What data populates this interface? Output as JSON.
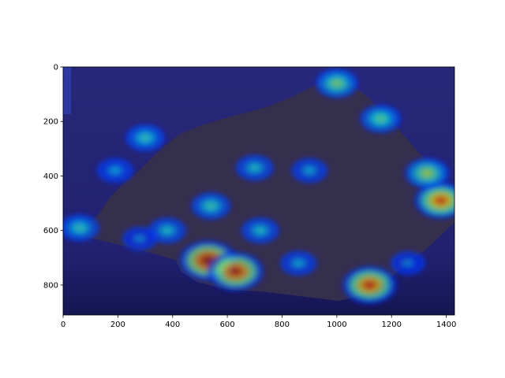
{
  "chart_data": {
    "type": "heatmap",
    "title": "",
    "xlabel": "",
    "ylabel": "",
    "xlim": [
      0,
      1430
    ],
    "ylim": [
      910,
      0
    ],
    "x_ticks": [
      0,
      200,
      400,
      600,
      800,
      1000,
      1200,
      1400
    ],
    "y_ticks": [
      0,
      200,
      400,
      600,
      800
    ],
    "grid": false,
    "legend": "none",
    "colormap": "jet",
    "overlay": "attention heatmap blended over a photograph of a dark rock on a blue background",
    "hotspots": [
      {
        "x": 530,
        "y": 710,
        "intensity": 1.0
      },
      {
        "x": 630,
        "y": 750,
        "intensity": 0.95
      },
      {
        "x": 1120,
        "y": 800,
        "intensity": 0.9
      },
      {
        "x": 1380,
        "y": 490,
        "intensity": 0.85
      },
      {
        "x": 1330,
        "y": 390,
        "intensity": 0.6
      },
      {
        "x": 1000,
        "y": 60,
        "intensity": 0.55
      },
      {
        "x": 1160,
        "y": 190,
        "intensity": 0.5
      },
      {
        "x": 300,
        "y": 260,
        "intensity": 0.45
      },
      {
        "x": 60,
        "y": 590,
        "intensity": 0.45
      },
      {
        "x": 380,
        "y": 600,
        "intensity": 0.4
      },
      {
        "x": 540,
        "y": 510,
        "intensity": 0.45
      },
      {
        "x": 700,
        "y": 370,
        "intensity": 0.4
      },
      {
        "x": 720,
        "y": 600,
        "intensity": 0.4
      },
      {
        "x": 900,
        "y": 380,
        "intensity": 0.35
      },
      {
        "x": 860,
        "y": 720,
        "intensity": 0.35
      },
      {
        "x": 190,
        "y": 380,
        "intensity": 0.35
      },
      {
        "x": 280,
        "y": 630,
        "intensity": 0.3
      },
      {
        "x": 1260,
        "y": 720,
        "intensity": 0.3
      }
    ]
  },
  "colors": {
    "background": "#21216b",
    "rock": "#3c3348",
    "text": "#000000"
  }
}
